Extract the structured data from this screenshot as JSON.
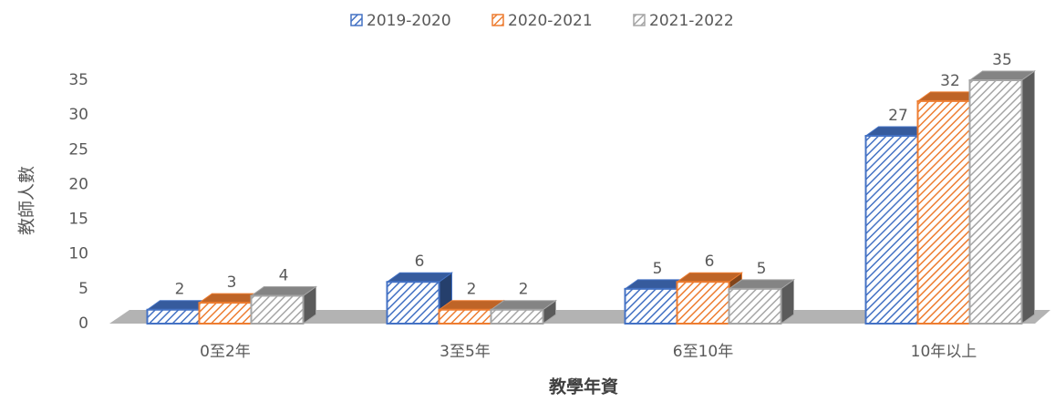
{
  "chart_data": {
    "type": "bar3d",
    "y_label": "教師人數",
    "x_label": "教學年資",
    "categories": [
      "0至2年",
      "3至5年",
      "6至10年",
      "10年以上"
    ],
    "series": [
      {
        "name": "2019-2020",
        "color": "#4472c4",
        "values": [
          2,
          6,
          5,
          27
        ]
      },
      {
        "name": "2020-2021",
        "color": "#ed7d31",
        "values": [
          3,
          2,
          6,
          32
        ]
      },
      {
        "name": "2021-2022",
        "color": "#a5a5a5",
        "values": [
          4,
          2,
          5,
          35
        ]
      }
    ],
    "ylim": [
      0,
      35
    ],
    "yticks": [
      0,
      5,
      10,
      15,
      20,
      25,
      30,
      35
    ],
    "legend": "top",
    "pattern": "hatch"
  }
}
